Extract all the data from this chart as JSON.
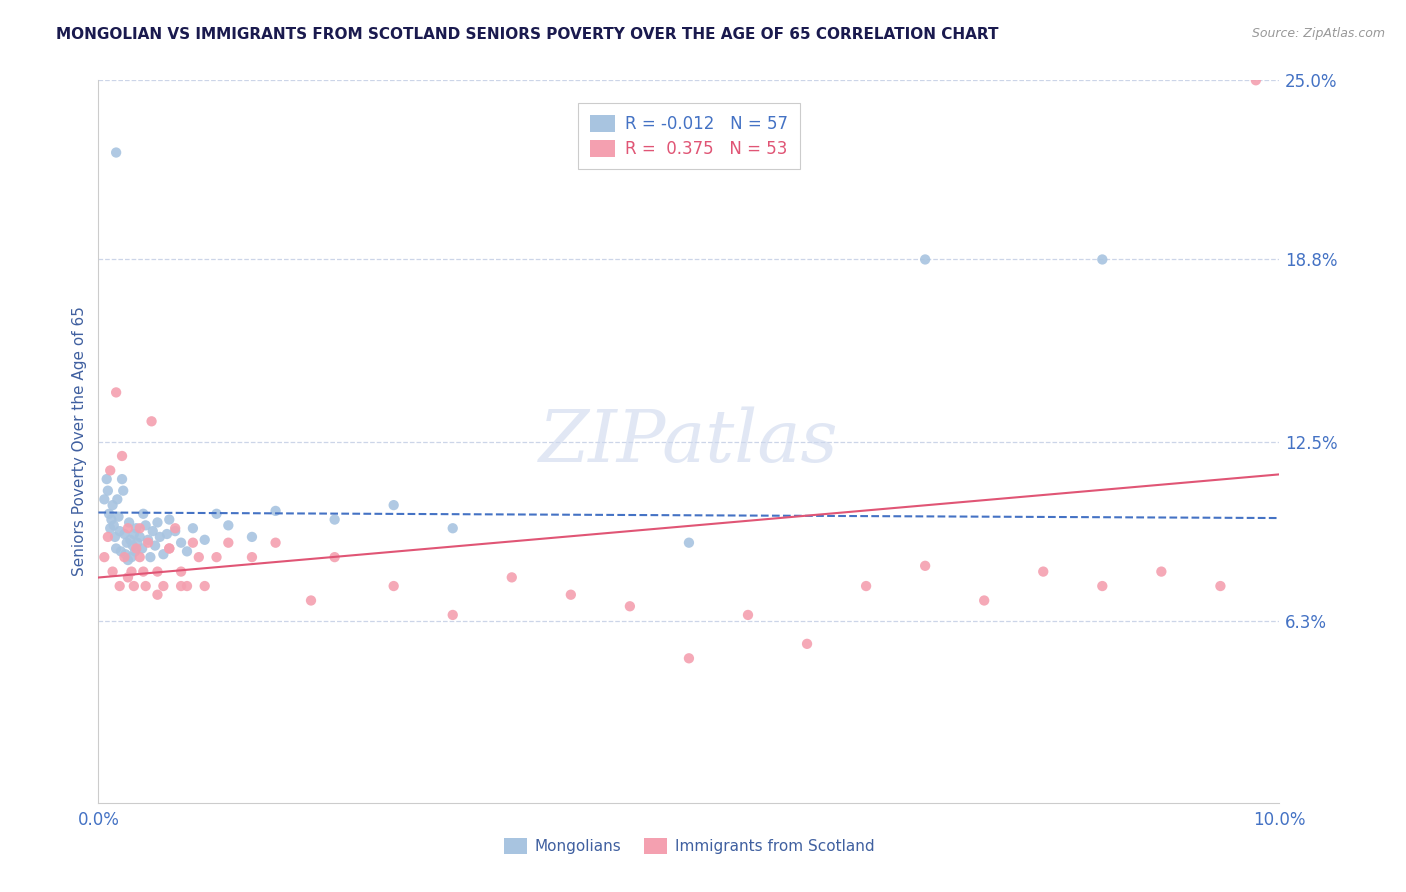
{
  "title": "MONGOLIAN VS IMMIGRANTS FROM SCOTLAND SENIORS POVERTY OVER THE AGE OF 65 CORRELATION CHART",
  "source_text": "Source: ZipAtlas.com",
  "ylabel": "Seniors Poverty Over the Age of 65",
  "xlim": [
    0.0,
    10.0
  ],
  "ylim": [
    0.0,
    25.0
  ],
  "y_tick_labels_right": [
    "6.3%",
    "12.5%",
    "18.8%",
    "25.0%"
  ],
  "y_tick_vals_right": [
    6.3,
    12.5,
    18.8,
    25.0
  ],
  "mongolian_color": "#a8c4e0",
  "scotland_color": "#f4a0b0",
  "mongolian_line_color": "#4472c4",
  "scotland_line_color": "#e05575",
  "r_mongolian": "-0.012",
  "n_mongolian": "57",
  "r_scotland": "0.375",
  "n_scotland": "53",
  "legend_label_1": "Mongolians",
  "legend_label_2": "Immigrants from Scotland",
  "watermark": "ZIPatlas",
  "mongolian_x": [
    0.05,
    0.07,
    0.08,
    0.09,
    0.1,
    0.11,
    0.12,
    0.13,
    0.14,
    0.15,
    0.16,
    0.17,
    0.18,
    0.19,
    0.2,
    0.21,
    0.22,
    0.23,
    0.24,
    0.25,
    0.26,
    0.27,
    0.28,
    0.29,
    0.3,
    0.31,
    0.32,
    0.33,
    0.35,
    0.37,
    0.38,
    0.4,
    0.42,
    0.44,
    0.46,
    0.48,
    0.5,
    0.52,
    0.55,
    0.58,
    0.6,
    0.65,
    0.7,
    0.75,
    0.8,
    0.9,
    1.0,
    1.1,
    1.3,
    1.5,
    2.0,
    2.5,
    3.0,
    5.0,
    7.0,
    8.5,
    0.15
  ],
  "mongolian_y": [
    10.5,
    11.2,
    10.8,
    10.0,
    9.5,
    9.8,
    10.3,
    9.6,
    9.2,
    8.8,
    10.5,
    9.9,
    9.4,
    8.7,
    11.2,
    10.8,
    9.3,
    8.6,
    9.0,
    8.4,
    9.7,
    9.1,
    8.5,
    8.9,
    9.3,
    8.7,
    9.5,
    9.0,
    9.2,
    8.8,
    10.0,
    9.6,
    9.1,
    8.5,
    9.4,
    8.9,
    9.7,
    9.2,
    8.6,
    9.3,
    9.8,
    9.4,
    9.0,
    8.7,
    9.5,
    9.1,
    10.0,
    9.6,
    9.2,
    10.1,
    9.8,
    10.3,
    9.5,
    9.0,
    18.8,
    18.8,
    22.5
  ],
  "scotland_x": [
    0.05,
    0.08,
    0.1,
    0.12,
    0.15,
    0.18,
    0.2,
    0.22,
    0.25,
    0.28,
    0.3,
    0.32,
    0.35,
    0.38,
    0.4,
    0.42,
    0.45,
    0.5,
    0.55,
    0.6,
    0.65,
    0.7,
    0.75,
    0.8,
    0.85,
    0.9,
    1.0,
    1.1,
    1.3,
    1.5,
    1.8,
    2.0,
    2.5,
    3.0,
    3.5,
    4.0,
    4.5,
    5.0,
    5.5,
    6.0,
    6.5,
    7.0,
    7.5,
    8.0,
    8.5,
    9.0,
    9.5,
    0.25,
    0.35,
    0.5,
    0.6,
    0.7,
    9.8
  ],
  "scotland_y": [
    8.5,
    9.2,
    11.5,
    8.0,
    14.2,
    7.5,
    12.0,
    8.5,
    9.5,
    8.0,
    7.5,
    8.8,
    9.5,
    8.0,
    7.5,
    9.0,
    13.2,
    8.0,
    7.5,
    8.8,
    9.5,
    8.0,
    7.5,
    9.0,
    8.5,
    7.5,
    8.5,
    9.0,
    8.5,
    9.0,
    7.0,
    8.5,
    7.5,
    6.5,
    7.8,
    7.2,
    6.8,
    5.0,
    6.5,
    5.5,
    7.5,
    8.2,
    7.0,
    8.0,
    7.5,
    8.0,
    7.5,
    7.8,
    8.5,
    7.2,
    8.8,
    7.5,
    25.0
  ],
  "background_color": "#ffffff",
  "grid_color": "#ccd5e8",
  "title_color": "#1a1a4e",
  "axis_label_color": "#4060a0",
  "tick_label_color": "#4472c4"
}
